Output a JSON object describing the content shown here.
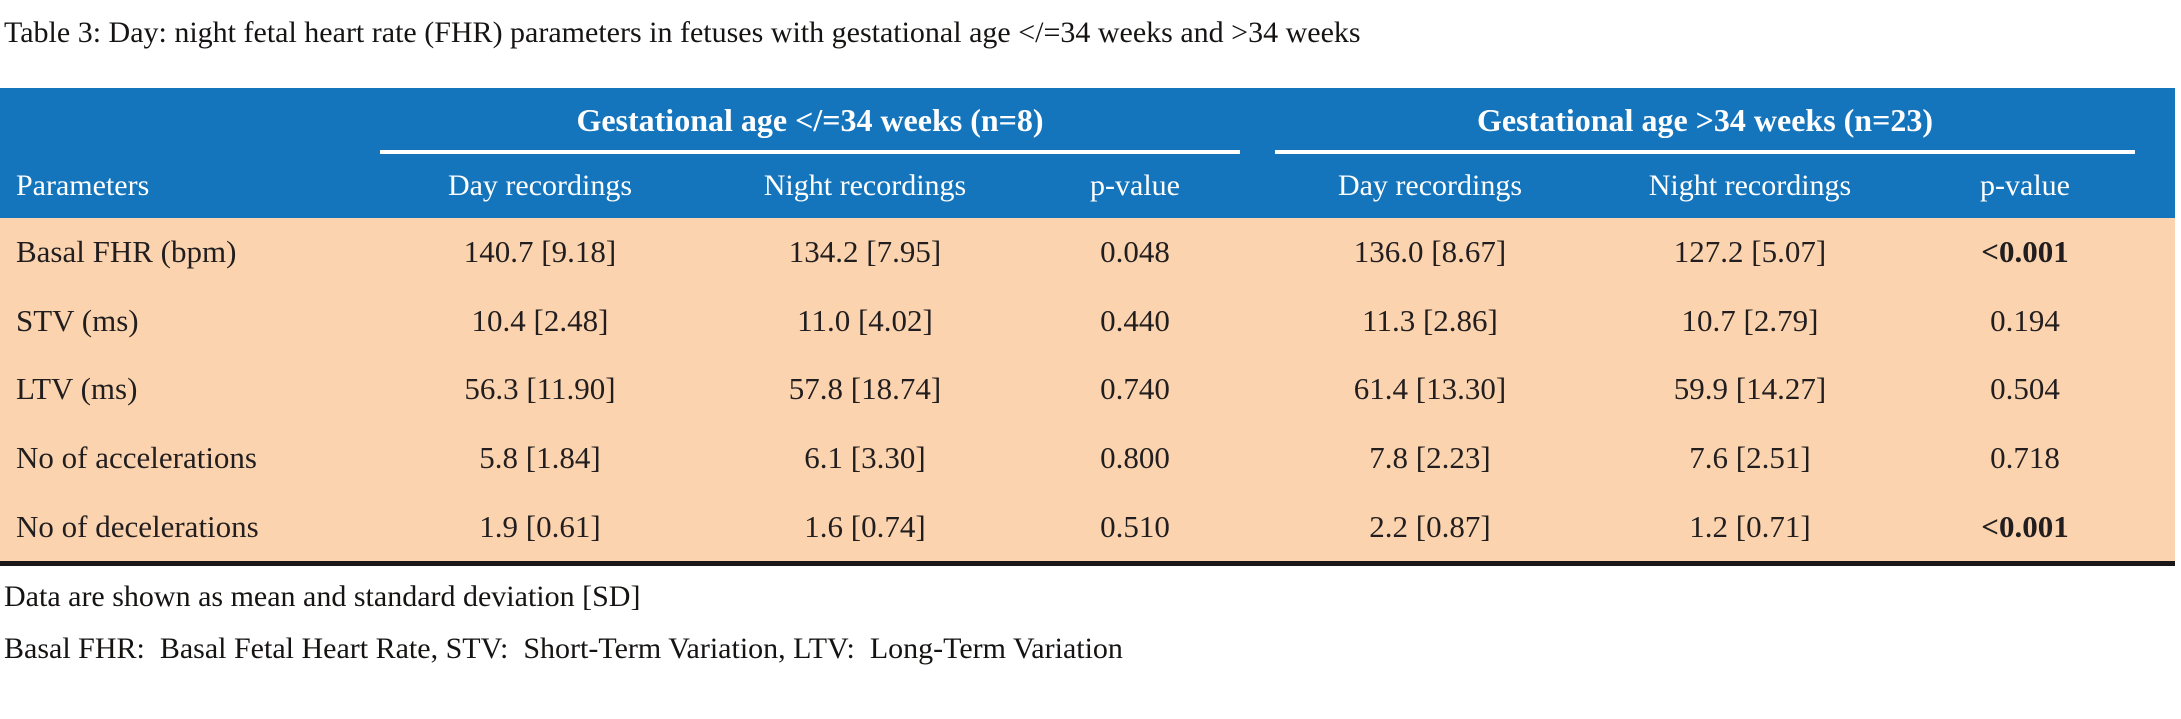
{
  "caption": "Table 3: Day: night fetal heart rate (FHR) parameters in fetuses with gestational age </=34 weeks and >34 weeks",
  "table": {
    "groups": [
      {
        "label": "Gestational age </=34 weeks (n=8)"
      },
      {
        "label": "Gestational age >34 weeks (n=23)"
      }
    ],
    "columns": {
      "parameters": "Parameters",
      "day": "Day recordings",
      "night": "Night recordings",
      "pvalue": "p-value"
    },
    "rows": [
      {
        "parameter": "Basal FHR (bpm)",
        "values": [
          "140.7 [9.18]",
          "134.2 [7.95]",
          "0.048",
          "136.0 [8.67]",
          "127.2 [5.07]",
          "<0.001"
        ],
        "bold": [
          false,
          false,
          false,
          false,
          false,
          true
        ]
      },
      {
        "parameter": "STV (ms)",
        "values": [
          "10.4 [2.48]",
          "11.0 [4.02]",
          "0.440",
          "11.3 [2.86]",
          "10.7 [2.79]",
          "0.194"
        ],
        "bold": [
          false,
          false,
          false,
          false,
          false,
          false
        ]
      },
      {
        "parameter": "LTV (ms)",
        "values": [
          "56.3 [11.90]",
          "57.8 [18.74]",
          "0.740",
          "61.4 [13.30]",
          "59.9 [14.27]",
          "0.504"
        ],
        "bold": [
          false,
          false,
          false,
          false,
          false,
          false
        ]
      },
      {
        "parameter": "No of accelerations",
        "values": [
          "5.8 [1.84]",
          "6.1 [3.30]",
          "0.800",
          "7.8 [2.23]",
          "7.6 [2.51]",
          "0.718"
        ],
        "bold": [
          false,
          false,
          false,
          false,
          false,
          false
        ]
      },
      {
        "parameter": "No of decelerations",
        "values": [
          "1.9 [0.61]",
          "1.6 [0.74]",
          "0.510",
          "2.2 [0.87]",
          "1.2 [0.71]",
          "<0.001"
        ],
        "bold": [
          false,
          false,
          false,
          false,
          false,
          true
        ]
      }
    ]
  },
  "footnotes": [
    "Data are shown as mean and standard deviation [SD]",
    "Basal FHR:  Basal Fetal Heart Rate, STV:  Short-Term Variation, LTV:  Long-Term Variation"
  ],
  "colors": {
    "header_bg": "#1475BD",
    "header_text": "#FFFFFF",
    "body_bg": "#FBD4AF",
    "body_text": "#221E1F",
    "rule": "#1A1718"
  }
}
